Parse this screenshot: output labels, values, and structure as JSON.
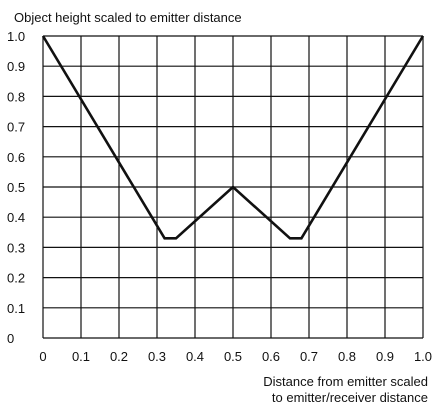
{
  "chart_data": {
    "type": "line",
    "title": "",
    "ylabel": "Object height scaled to emitter distance",
    "xlabel_lines": [
      "Distance from emitter scaled",
      "to emitter/receiver distance"
    ],
    "xlim": [
      0,
      1
    ],
    "ylim": [
      0,
      1
    ],
    "grid": true,
    "x_ticks": [
      "0",
      "0.1",
      "0.2",
      "0.3",
      "0.4",
      "0.5",
      "0.6",
      "0.7",
      "0.8",
      "0.9",
      "1.0"
    ],
    "y_ticks": [
      "0",
      "0.1",
      "0.2",
      "0.3",
      "0.4",
      "0.5",
      "0.6",
      "0.7",
      "0.8",
      "0.9",
      "1.0"
    ],
    "series": [
      {
        "x": [
          0,
          0.32,
          0.35,
          0.5,
          0.65,
          0.68,
          1.0
        ],
        "y": [
          1.0,
          0.33,
          0.33,
          0.5,
          0.33,
          0.33,
          1.0
        ]
      }
    ],
    "line_color": "#111111",
    "grid_color": "#111111"
  }
}
